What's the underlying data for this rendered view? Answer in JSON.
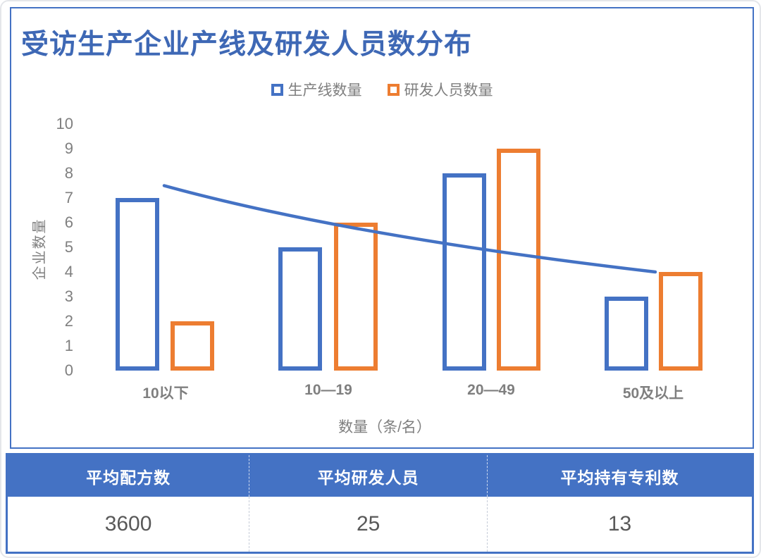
{
  "chart_data": {
    "type": "bar",
    "title": "受访生产企业产线及研发人员数分布",
    "categories": [
      "10以下",
      "10—19",
      "20—49",
      "50及以上"
    ],
    "series": [
      {
        "name": "生产线数量",
        "color": "#4472C4",
        "values": [
          7,
          5,
          8,
          3
        ]
      },
      {
        "name": "研发人员数量",
        "color": "#ED7D31",
        "values": [
          2,
          6,
          9,
          4
        ]
      }
    ],
    "trendline": {
      "color": "#4472C4",
      "values": [
        7.5,
        5.6,
        4.0
      ]
    },
    "xlabel": "数量（条/名）",
    "ylabel": "企业数量",
    "ylim": [
      0,
      10
    ],
    "yticks": [
      0,
      1,
      2,
      3,
      4,
      5,
      6,
      7,
      8,
      9,
      10
    ],
    "legend_position": "top",
    "grid": false,
    "bar_style": "outline-only"
  },
  "summary_table": {
    "headers": [
      "平均配方数",
      "平均研发人员",
      "平均持有专利数"
    ],
    "values": [
      "3600",
      "25",
      "13"
    ]
  },
  "colors": {
    "accent_blue": "#4472C4",
    "accent_orange": "#ED7D31",
    "title_blue": "#3E68B5",
    "axis_gray": "#7F7F7F",
    "value_gray": "#595959",
    "panel_border": "#4472C4",
    "table_header_bg": "#4472C4"
  }
}
